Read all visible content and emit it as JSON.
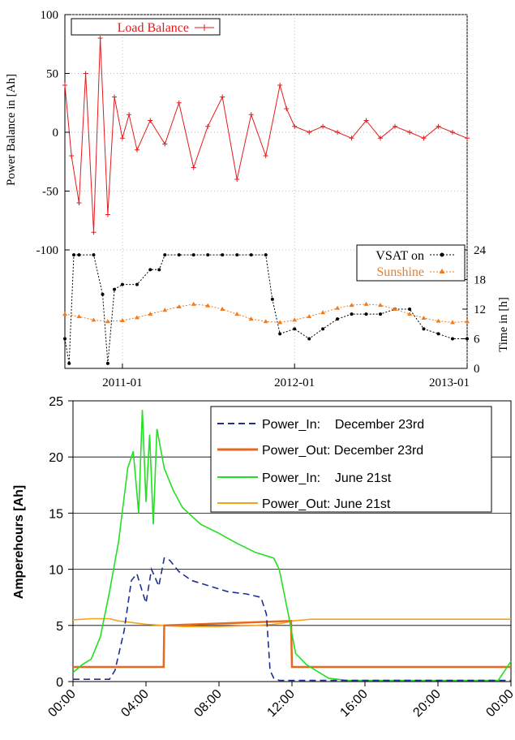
{
  "chart_data": [
    {
      "type": "line",
      "ylabel": "Power Balance in [Ah]",
      "y2label": "Time in [h]",
      "ylim": [
        -100,
        100
      ],
      "y_ticks": [
        {
          "value": 100,
          "label": "100"
        },
        {
          "value": 50,
          "label": "50"
        },
        {
          "value": 0,
          "label": "0"
        },
        {
          "value": -50,
          "label": "-50"
        },
        {
          "value": -100,
          "label": "-100"
        }
      ],
      "y2lim": [
        0,
        24
      ],
      "y2_ticks": [
        {
          "value": 24,
          "label": "24"
        },
        {
          "value": 18,
          "label": "18"
        },
        {
          "value": 12,
          "label": "12"
        },
        {
          "value": 6,
          "label": "6"
        },
        {
          "value": 0,
          "label": "0"
        }
      ],
      "xlim": [
        "2010-09-01",
        "2013-01-01"
      ],
      "x_ticks": [
        {
          "value": "2011-01-01",
          "label": "2011-01"
        },
        {
          "value": "2012-01-01",
          "label": "2012-01"
        },
        {
          "value": "2013-01-01",
          "label": "2013-01"
        }
      ],
      "grid": true,
      "legend_position": "top-left and middle-right",
      "colors": {
        "load_balance": "#e41a1c",
        "vsat": "#000000",
        "sunshine": "#f07c1e"
      },
      "series": [
        {
          "name": "Load Balance",
          "axis": "left",
          "x": [
            "2010-09-01",
            "2010-09-15",
            "2010-10-01",
            "2010-10-15",
            "2010-11-01",
            "2010-11-15",
            "2010-12-01",
            "2010-12-15",
            "2011-01-01",
            "2011-01-15",
            "2011-02-01",
            "2011-03-01",
            "2011-04-01",
            "2011-05-01",
            "2011-06-01",
            "2011-07-01",
            "2011-08-01",
            "2011-09-01",
            "2011-10-01",
            "2011-11-01",
            "2011-12-01",
            "2011-12-15",
            "2012-01-01",
            "2012-02-01",
            "2012-03-01",
            "2012-04-01",
            "2012-05-01",
            "2012-06-01",
            "2012-07-01",
            "2012-08-01",
            "2012-09-01",
            "2012-10-01",
            "2012-11-01",
            "2012-12-01",
            "2013-01-01"
          ],
          "values": [
            40,
            -20,
            -60,
            50,
            -85,
            80,
            -70,
            30,
            -5,
            15,
            -15,
            10,
            -10,
            25,
            -30,
            5,
            30,
            -40,
            15,
            -20,
            40,
            20,
            5,
            0,
            5,
            0,
            -5,
            10,
            -5,
            5,
            0,
            -5,
            5,
            0,
            -5
          ]
        },
        {
          "name": "VSAT on",
          "axis": "right",
          "x": [
            "2010-09-01",
            "2010-09-10",
            "2010-09-20",
            "2010-10-01",
            "2010-11-01",
            "2010-11-20",
            "2010-12-01",
            "2010-12-15",
            "2011-01-01",
            "2011-02-01",
            "2011-03-01",
            "2011-03-20",
            "2011-04-01",
            "2011-05-01",
            "2011-06-01",
            "2011-07-01",
            "2011-08-01",
            "2011-09-01",
            "2011-10-01",
            "2011-11-01",
            "2011-11-15",
            "2011-12-01",
            "2012-01-01",
            "2012-02-01",
            "2012-03-01",
            "2012-04-01",
            "2012-05-01",
            "2012-06-01",
            "2012-07-01",
            "2012-08-01",
            "2012-09-01",
            "2012-10-01",
            "2012-11-01",
            "2012-12-01",
            "2013-01-01"
          ],
          "values": [
            6,
            1,
            23,
            23,
            23,
            15,
            1,
            16,
            17,
            17,
            20,
            20,
            23,
            23,
            23,
            23,
            23,
            23,
            23,
            23,
            14,
            7,
            8,
            6,
            8,
            10,
            11,
            11,
            11,
            12,
            12,
            8,
            7,
            6,
            6
          ]
        },
        {
          "name": "Sunshine",
          "axis": "right",
          "x": [
            "2010-09-01",
            "2010-10-01",
            "2010-11-01",
            "2010-12-01",
            "2011-01-01",
            "2011-02-01",
            "2011-03-01",
            "2011-04-01",
            "2011-05-01",
            "2011-06-01",
            "2011-07-01",
            "2011-08-01",
            "2011-09-01",
            "2011-10-01",
            "2011-11-01",
            "2011-12-01",
            "2012-01-01",
            "2012-02-01",
            "2012-03-01",
            "2012-04-01",
            "2012-05-01",
            "2012-06-01",
            "2012-07-01",
            "2012-08-01",
            "2012-09-01",
            "2012-10-01",
            "2012-11-01",
            "2012-12-01",
            "2013-01-01"
          ],
          "values": [
            11,
            10.5,
            9.8,
            9.5,
            9.7,
            10.3,
            11,
            11.8,
            12.5,
            13,
            12.7,
            12,
            11,
            10,
            9.5,
            9.3,
            9.8,
            10.5,
            11.3,
            12.2,
            12.8,
            13,
            12.8,
            12,
            11,
            10.2,
            9.6,
            9.3,
            9.5
          ]
        }
      ]
    },
    {
      "type": "line",
      "ylabel": "Amperehours [Ah]",
      "xlabel": "",
      "ylim": [
        0,
        25
      ],
      "y_ticks": [
        {
          "value": 0,
          "label": "0"
        },
        {
          "value": 5,
          "label": "5"
        },
        {
          "value": 10,
          "label": "10"
        },
        {
          "value": 15,
          "label": "15"
        },
        {
          "value": 20,
          "label": "20"
        },
        {
          "value": 25,
          "label": "25"
        }
      ],
      "xlim": [
        0,
        24
      ],
      "x_ticks": [
        {
          "value": 0,
          "label": "00:00"
        },
        {
          "value": 4,
          "label": "04:00"
        },
        {
          "value": 8,
          "label": "08:00"
        },
        {
          "value": 12,
          "label": "12:00"
        },
        {
          "value": 16,
          "label": "16:00"
        },
        {
          "value": 20,
          "label": "20:00"
        },
        {
          "value": 24,
          "label": "00:00"
        }
      ],
      "grid": true,
      "legend_position": "top-right",
      "series": [
        {
          "name": "Power_In:    December 23rd",
          "color": "#1f2f8f",
          "dash": true,
          "x": [
            0,
            2,
            2.3,
            2.8,
            3.2,
            3.5,
            3.8,
            4.0,
            4.3,
            4.7,
            5.0,
            5.3,
            5.8,
            6.5,
            7.5,
            8.5,
            9.5,
            10.3,
            10.6,
            10.8,
            11.0,
            11.3,
            12.0,
            24
          ],
          "values": [
            0.2,
            0.2,
            1.0,
            4.5,
            9.0,
            9.6,
            8.0,
            7.0,
            10.0,
            8.5,
            11.0,
            10.8,
            9.8,
            9.0,
            8.5,
            8.0,
            7.8,
            7.5,
            6.0,
            1.0,
            0.3,
            0.1,
            0.1,
            0.1
          ]
        },
        {
          "name": "Power_Out: December 23rd",
          "color": "#e8691e",
          "dash": false,
          "x": [
            0,
            4.97,
            5.0,
            11.95,
            12.0,
            24
          ],
          "values": [
            1.3,
            1.3,
            5.0,
            5.4,
            1.3,
            1.3
          ]
        },
        {
          "name": "Power_In:    June 21st",
          "color": "#22e022",
          "dash": false,
          "x": [
            0,
            0.5,
            1.0,
            1.5,
            2.0,
            2.5,
            3.0,
            3.3,
            3.6,
            3.8,
            4.0,
            4.2,
            4.4,
            4.6,
            5.0,
            5.5,
            6.0,
            7.0,
            8.0,
            9.0,
            10.0,
            11.0,
            11.3,
            11.8,
            12.2,
            12.8,
            14.0,
            15.0,
            23.3,
            24
          ],
          "values": [
            0.8,
            1.5,
            2.0,
            4.0,
            8.0,
            12.5,
            19.0,
            20.5,
            15.0,
            24.2,
            16.0,
            22.0,
            14.0,
            22.5,
            19.0,
            17.0,
            15.5,
            14.0,
            13.2,
            12.3,
            11.5,
            11.0,
            10.0,
            6.0,
            2.5,
            1.5,
            0.3,
            0.1,
            0.1,
            1.8
          ]
        },
        {
          "name": "Power_Out: June 21st",
          "color": "#f5a31b",
          "dash": false,
          "x": [
            0,
            1,
            2,
            2.5,
            3,
            4,
            6,
            8,
            10,
            11,
            11.5,
            12,
            13,
            24
          ],
          "values": [
            5.5,
            5.6,
            5.6,
            5.4,
            5.3,
            5.1,
            4.9,
            4.9,
            5.0,
            5.1,
            5.2,
            5.4,
            5.55,
            5.55
          ]
        }
      ]
    }
  ]
}
